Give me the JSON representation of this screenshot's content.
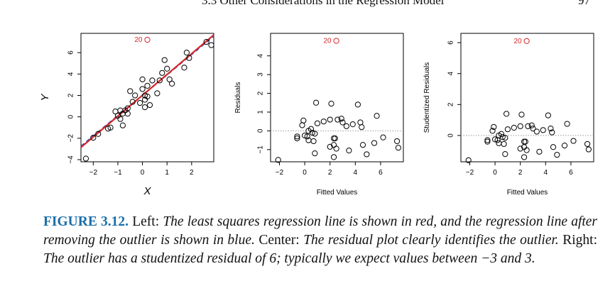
{
  "header": {
    "section": "3.3 Other Considerations in the Regression Model",
    "page": "97"
  },
  "caption": {
    "label": "FIGURE 3.12.",
    "s1": "Left:",
    "s2": "The least squares regression line is shown in red, and the regression line after removing the outlier is shown in blue.",
    "s3": "Center:",
    "s4": "The residual plot clearly identifies the outlier.",
    "s5": "Right:",
    "s6": "The outlier has a studentized residual of 6; typically we expect values between −3 and 3."
  },
  "colors": {
    "outlier": "#d62728",
    "ls_line": "#d62728",
    "ls_line_no_outlier": "#1f4fbf",
    "points": "#000000",
    "zero_line": "#999999"
  },
  "chart_data": [
    {
      "type": "scatter",
      "xlabel": "X",
      "ylabel": "Y",
      "xlim": [
        -2.5,
        2.9
      ],
      "ylim": [
        -4.2,
        7.8
      ],
      "xticks": [
        -2,
        -1,
        0,
        1,
        2
      ],
      "yticks": [
        -4,
        -2,
        0,
        2,
        4,
        6
      ],
      "lines": [
        {
          "color": "#1f4fbf",
          "dash": true,
          "x": [
            -2.5,
            2.9
          ],
          "y": [
            -2.75,
            7.55
          ]
        },
        {
          "color": "#d62728",
          "dash": false,
          "x": [
            -2.5,
            2.9
          ],
          "y": [
            -2.85,
            7.65
          ]
        }
      ],
      "outlier": {
        "x": 0.2,
        "y": 7.2,
        "label": "20"
      },
      "points": [
        [
          -2.3,
          -3.9
        ],
        [
          -2.0,
          -1.95
        ],
        [
          -1.8,
          -1.6
        ],
        [
          -1.4,
          -1.1
        ],
        [
          -1.3,
          -1.0
        ],
        [
          -1.1,
          0.5
        ],
        [
          -1.0,
          0.1
        ],
        [
          -0.9,
          -0.2
        ],
        [
          -0.9,
          0.6
        ],
        [
          -0.8,
          -0.8
        ],
        [
          -0.8,
          0.3
        ],
        [
          -0.7,
          0.6
        ],
        [
          -0.6,
          0.3
        ],
        [
          -0.6,
          0.8
        ],
        [
          -0.5,
          2.4
        ],
        [
          -0.4,
          1.4
        ],
        [
          -0.3,
          2.0
        ],
        [
          -0.1,
          1.3
        ],
        [
          0.0,
          2.6
        ],
        [
          0.0,
          3.5
        ],
        [
          0.1,
          1.6
        ],
        [
          0.1,
          2.0
        ],
        [
          0.1,
          0.9
        ],
        [
          0.2,
          1.9
        ],
        [
          0.2,
          2.9
        ],
        [
          0.3,
          1.1
        ],
        [
          0.4,
          3.4
        ],
        [
          0.6,
          2.2
        ],
        [
          0.7,
          3.4
        ],
        [
          0.8,
          4.1
        ],
        [
          0.9,
          5.3
        ],
        [
          1.0,
          4.5
        ],
        [
          1.1,
          3.5
        ],
        [
          1.2,
          3.1
        ],
        [
          1.7,
          4.6
        ],
        [
          1.8,
          6.0
        ],
        [
          1.9,
          5.5
        ],
        [
          2.6,
          7.0
        ],
        [
          2.8,
          6.7
        ]
      ]
    },
    {
      "type": "scatter",
      "xlabel": "Fitted Values",
      "ylabel": "Residuals",
      "xlim": [
        -2.7,
        7.8
      ],
      "ylim": [
        -1.65,
        5.2
      ],
      "xticks": [
        -2,
        0,
        2,
        4,
        6
      ],
      "yticks": [
        -1,
        0,
        1,
        2,
        3,
        4
      ],
      "hline": 0,
      "outlier": {
        "x": 2.5,
        "y": 4.8,
        "label": "20"
      },
      "points": [
        [
          -2.1,
          -1.55
        ],
        [
          -0.6,
          -0.3
        ],
        [
          -0.6,
          -0.4
        ],
        [
          -0.2,
          0.3
        ],
        [
          -0.1,
          0.55
        ],
        [
          0.0,
          -0.25
        ],
        [
          0.2,
          -0.3
        ],
        [
          0.3,
          -0.5
        ],
        [
          0.3,
          0.0
        ],
        [
          0.5,
          0.1
        ],
        [
          0.6,
          -0.1
        ],
        [
          0.7,
          -0.55
        ],
        [
          0.8,
          -0.15
        ],
        [
          0.9,
          1.5
        ],
        [
          1.0,
          0.4
        ],
        [
          1.5,
          0.5
        ],
        [
          2.0,
          0.6
        ],
        [
          2.0,
          -0.85
        ],
        [
          2.1,
          1.45
        ],
        [
          2.3,
          -0.4
        ],
        [
          2.3,
          -0.75
        ],
        [
          2.4,
          -0.4
        ],
        [
          2.5,
          -0.95
        ],
        [
          2.6,
          0.6
        ],
        [
          2.9,
          0.65
        ],
        [
          3.0,
          0.45
        ],
        [
          3.3,
          0.25
        ],
        [
          3.5,
          -1.05
        ],
        [
          3.8,
          0.35
        ],
        [
          4.2,
          1.4
        ],
        [
          4.4,
          0.45
        ],
        [
          4.5,
          0.2
        ],
        [
          4.6,
          -0.75
        ],
        [
          4.9,
          -1.25
        ],
        [
          5.5,
          -0.65
        ],
        [
          5.7,
          0.8
        ],
        [
          6.2,
          -0.35
        ],
        [
          7.3,
          -0.55
        ],
        [
          7.4,
          -0.9
        ],
        [
          0.8,
          -1.2
        ],
        [
          2.3,
          -1.4
        ]
      ]
    },
    {
      "type": "scatter",
      "xlabel": "Fitted Values",
      "ylabel": "Studentized Residuals",
      "xlim": [
        -2.7,
        7.8
      ],
      "ylim": [
        -1.7,
        6.6
      ],
      "xticks": [
        -2,
        0,
        2,
        4,
        6
      ],
      "yticks": [
        0,
        2,
        4,
        6
      ],
      "hline": 0,
      "outlier": {
        "x": 2.5,
        "y": 6.1,
        "label": "20"
      },
      "points": [
        [
          -2.1,
          -1.6
        ],
        [
          -0.6,
          -0.3
        ],
        [
          -0.6,
          -0.4
        ],
        [
          -0.2,
          0.3
        ],
        [
          -0.1,
          0.55
        ],
        [
          0.0,
          -0.25
        ],
        [
          0.2,
          -0.3
        ],
        [
          0.3,
          -0.5
        ],
        [
          0.3,
          0.0
        ],
        [
          0.5,
          0.1
        ],
        [
          0.6,
          -0.1
        ],
        [
          0.7,
          -0.55
        ],
        [
          0.8,
          -0.15
        ],
        [
          0.9,
          1.4
        ],
        [
          1.0,
          0.4
        ],
        [
          1.5,
          0.5
        ],
        [
          2.0,
          0.6
        ],
        [
          2.0,
          -0.85
        ],
        [
          2.1,
          1.35
        ],
        [
          2.3,
          -0.4
        ],
        [
          2.3,
          -0.75
        ],
        [
          2.4,
          -0.4
        ],
        [
          2.5,
          -0.95
        ],
        [
          2.6,
          0.6
        ],
        [
          2.9,
          0.65
        ],
        [
          3.0,
          0.45
        ],
        [
          3.3,
          0.25
        ],
        [
          3.5,
          -1.05
        ],
        [
          3.8,
          0.35
        ],
        [
          4.2,
          1.3
        ],
        [
          4.4,
          0.45
        ],
        [
          4.5,
          0.2
        ],
        [
          4.6,
          -0.75
        ],
        [
          4.9,
          -1.25
        ],
        [
          5.5,
          -0.65
        ],
        [
          5.7,
          0.75
        ],
        [
          6.2,
          -0.35
        ],
        [
          7.3,
          -0.55
        ],
        [
          7.4,
          -0.9
        ],
        [
          0.8,
          -1.2
        ],
        [
          2.3,
          -1.4
        ]
      ]
    }
  ]
}
